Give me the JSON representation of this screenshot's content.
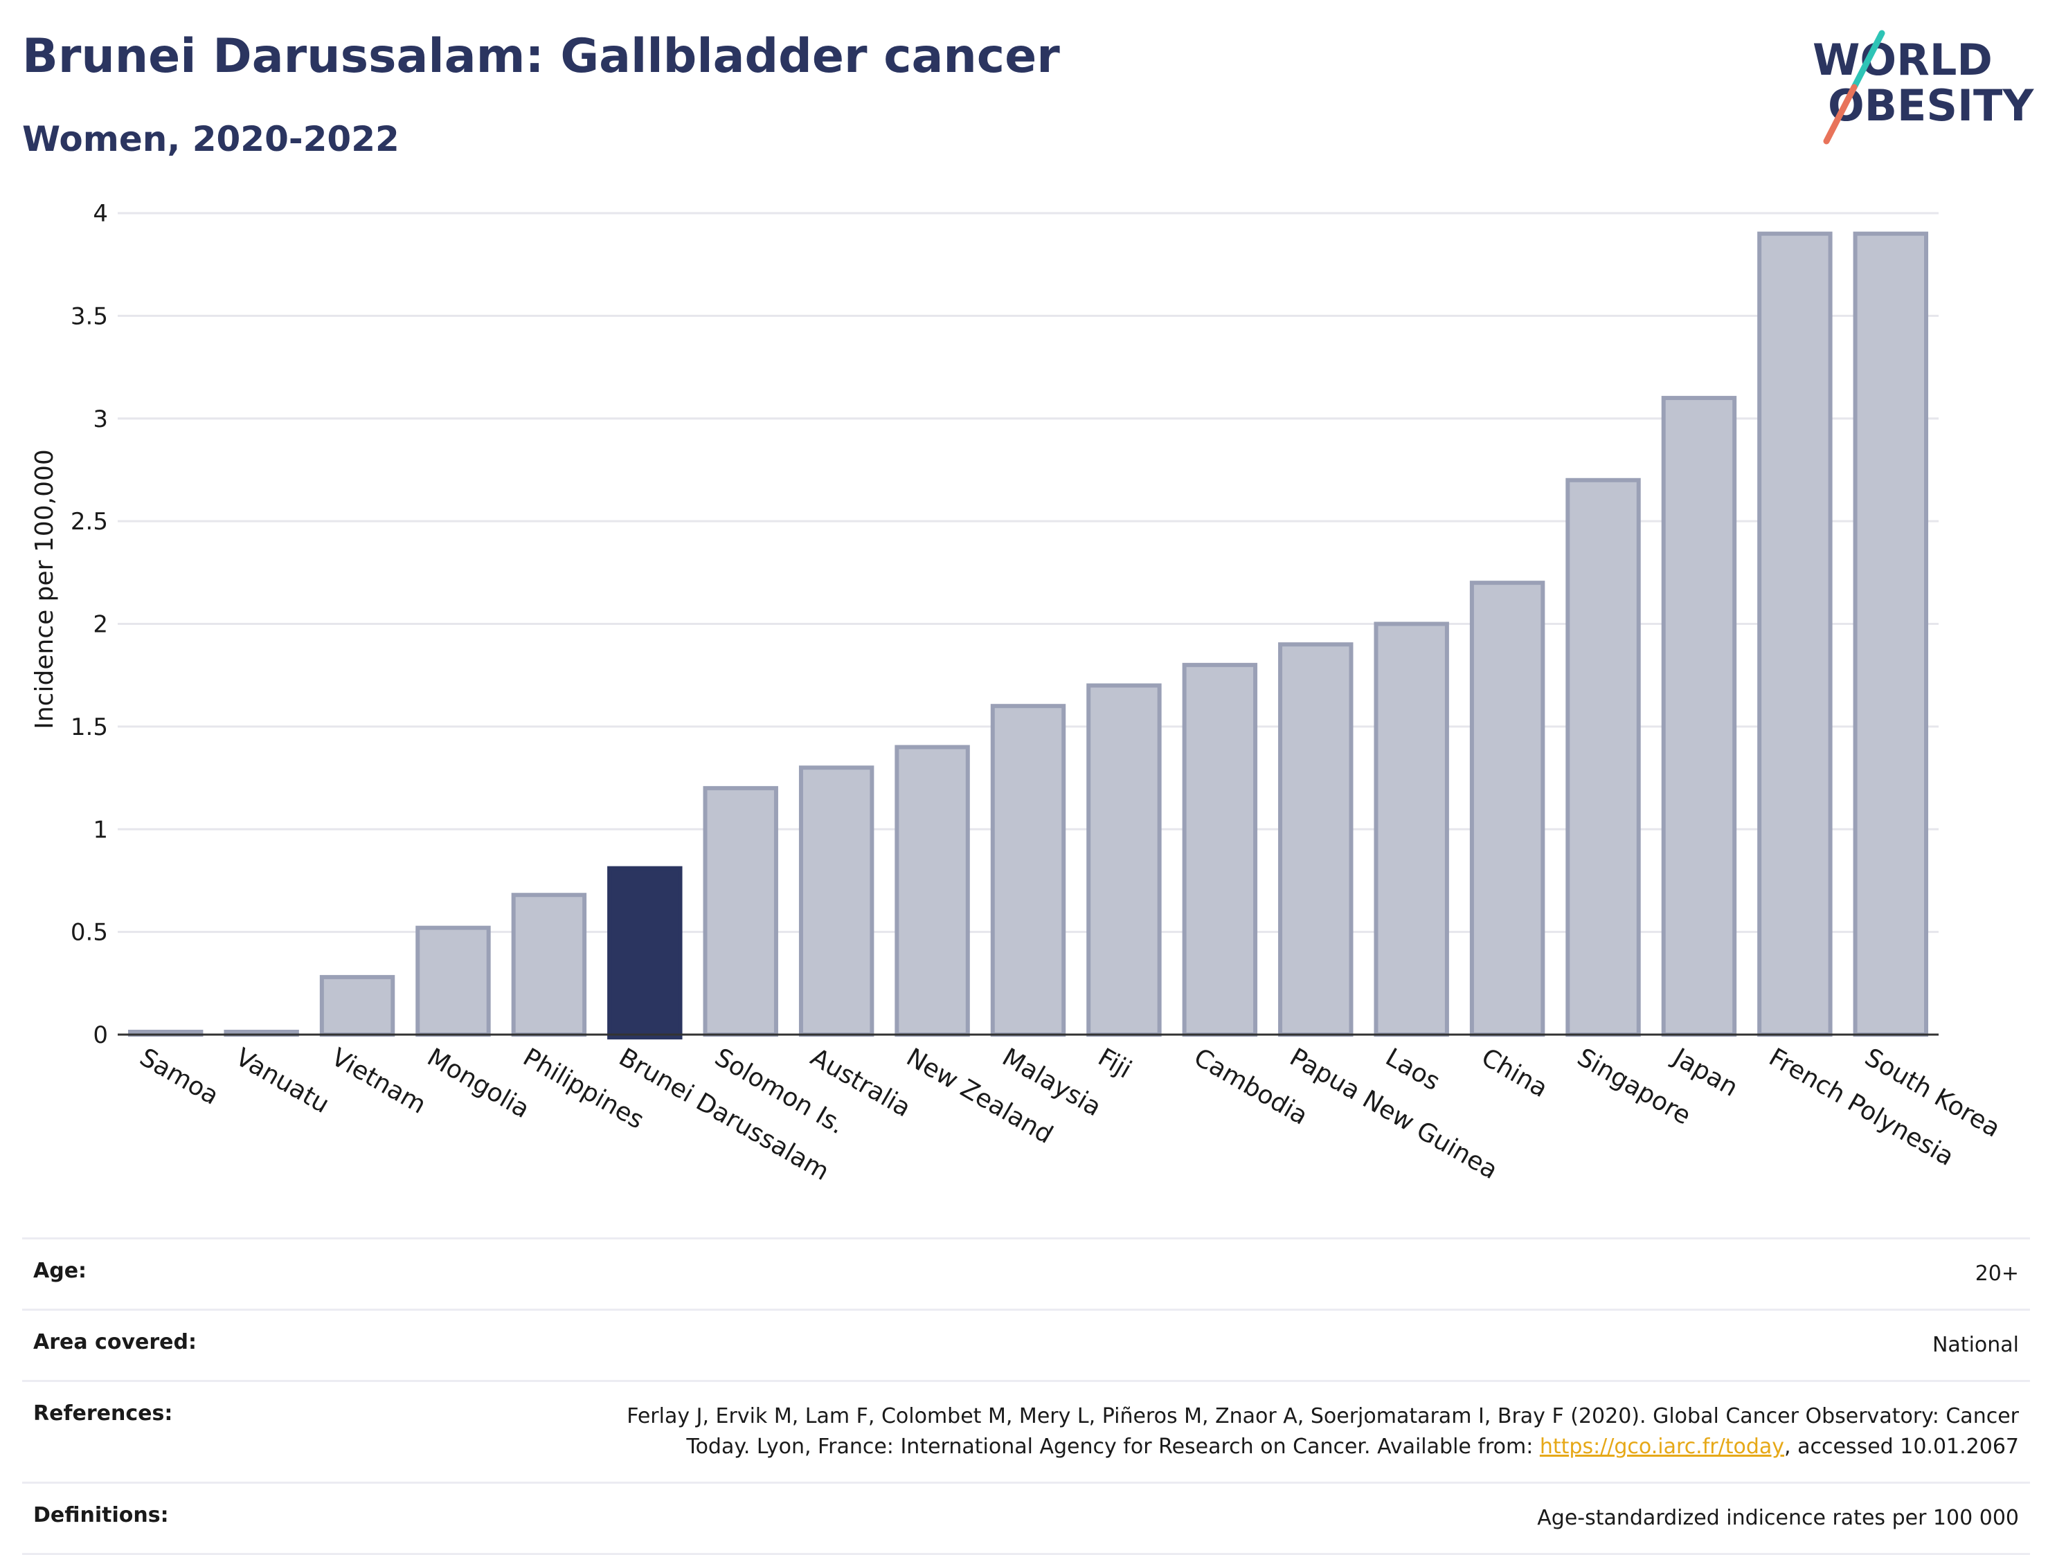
{
  "header": {
    "title": "Brunei Darussalam: Gallbladder cancer",
    "subtitle": "Women, 2020-2022"
  },
  "logo": {
    "line1": "WORLD",
    "line2": "OBESITY"
  },
  "colors": {
    "highlight": "#2b3560",
    "bar_fill": "#bfc3d0",
    "bar_stroke": "#9aa0b6",
    "grid": "#e6e6ec",
    "logo_teal": "#2ec4b6",
    "logo_coral": "#e8735a"
  },
  "chart_data": {
    "type": "bar",
    "categories": [
      "Samoa",
      "Vanuatu",
      "Vietnam",
      "Mongolia",
      "Philippines",
      "Brunei Darussalam",
      "Solomon Is.",
      "Australia",
      "New Zealand",
      "Malaysia",
      "Fiji",
      "Cambodia",
      "Papua New Guinea",
      "Laos",
      "China",
      "Singapore",
      "Japan",
      "French Polynesia",
      "South Korea"
    ],
    "values": [
      0,
      0,
      0.28,
      0.52,
      0.68,
      0.81,
      1.2,
      1.3,
      1.4,
      1.6,
      1.7,
      1.8,
      1.9,
      2.0,
      2.2,
      2.7,
      3.1,
      3.9,
      3.9
    ],
    "highlight": "Brunei Darussalam",
    "ylabel": "Incidence per 100,000",
    "ylim": [
      0,
      4
    ],
    "yticks": [
      {
        "v": 0,
        "t": "0"
      },
      {
        "v": 0.5,
        "t": "0.5"
      },
      {
        "v": 1,
        "t": "1"
      },
      {
        "v": 1.5,
        "t": "1.5"
      },
      {
        "v": 2,
        "t": "2"
      },
      {
        "v": 2.5,
        "t": "2.5"
      },
      {
        "v": 3,
        "t": "3"
      },
      {
        "v": 3.5,
        "t": "3.5"
      },
      {
        "v": 4,
        "t": "4"
      }
    ],
    "grid": true
  },
  "meta": {
    "age_label": "Age:",
    "age_value": "20+",
    "area_label": "Area covered:",
    "area_value": "National",
    "references_label": "References:",
    "references_text1": "Ferlay J, Ervik M, Lam F, Colombet M, Mery L, Piñeros M, Znaor A, Soerjomataram I, Bray F (2020). Global Cancer Observatory: Cancer Today. Lyon, France: International Agency for Research on Cancer. Available from: ",
    "references_link": "https://gco.iarc.fr/today",
    "references_text2": ", accessed 10.01.2067",
    "definitions_label": "Definitions:",
    "definitions_value": "Age-standardized indicence rates per 100 000"
  }
}
